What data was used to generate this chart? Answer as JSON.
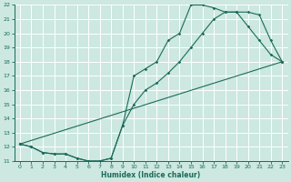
{
  "xlabel": "Humidex (Indice chaleur)",
  "xlim": [
    -0.5,
    23.5
  ],
  "ylim": [
    11,
    22
  ],
  "xticks": [
    0,
    1,
    2,
    3,
    4,
    5,
    6,
    7,
    8,
    9,
    10,
    11,
    12,
    13,
    14,
    15,
    16,
    17,
    18,
    19,
    20,
    21,
    22,
    23
  ],
  "yticks": [
    11,
    12,
    13,
    14,
    15,
    16,
    17,
    18,
    19,
    20,
    21,
    22
  ],
  "background_color": "#cce8e0",
  "grid_color": "#b0d8ce",
  "line_color": "#1a6b5a",
  "line1_x": [
    0,
    1,
    2,
    3,
    4,
    5,
    6,
    7,
    8,
    9,
    10,
    11,
    12,
    13,
    14,
    15,
    16,
    17,
    18,
    19,
    20,
    21,
    22,
    23
  ],
  "line1_y": [
    12.2,
    12.0,
    11.6,
    11.5,
    11.5,
    11.2,
    11.0,
    11.0,
    11.2,
    13.5,
    17.0,
    17.5,
    18.0,
    19.5,
    20.0,
    22.0,
    22.0,
    21.8,
    21.5,
    21.5,
    20.5,
    19.5,
    18.5,
    18.0
  ],
  "line2_x": [
    0,
    1,
    2,
    3,
    4,
    5,
    6,
    7,
    8,
    9,
    10,
    11,
    12,
    13,
    14,
    15,
    16,
    17,
    18,
    19,
    20,
    21,
    22,
    23
  ],
  "line2_y": [
    12.2,
    12.0,
    11.6,
    11.5,
    11.5,
    11.2,
    11.0,
    11.0,
    11.2,
    13.5,
    15.0,
    16.0,
    16.5,
    17.2,
    18.0,
    19.0,
    20.0,
    21.0,
    21.5,
    21.5,
    21.5,
    21.3,
    19.5,
    18.0
  ],
  "line3_x": [
    0,
    23
  ],
  "line3_y": [
    12.2,
    18.0
  ]
}
